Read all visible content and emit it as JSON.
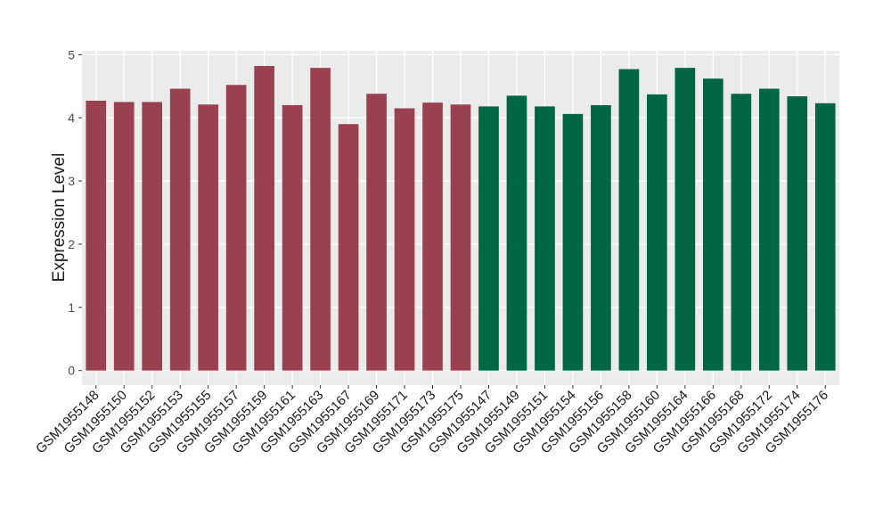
{
  "chart_data": {
    "type": "bar",
    "y_label": "Expression Level",
    "categories": [
      "GSM1955148",
      "GSM1955150",
      "GSM1955152",
      "GSM1955153",
      "GSM1955155",
      "GSM1955157",
      "GSM1955159",
      "GSM1955161",
      "GSM1955163",
      "GSM1955167",
      "GSM1955169",
      "GSM1955171",
      "GSM1955173",
      "GSM1955175",
      "GSM1955147",
      "GSM1955149",
      "GSM1955151",
      "GSM1955154",
      "GSM1955156",
      "GSM1955158",
      "GSM1955160",
      "GSM1955164",
      "GSM1955166",
      "GSM1955168",
      "GSM1955172",
      "GSM1955174",
      "GSM1955176"
    ],
    "values": [
      4.27,
      4.25,
      4.25,
      4.46,
      4.21,
      4.52,
      4.82,
      4.2,
      4.79,
      3.9,
      4.38,
      4.15,
      4.24,
      4.21,
      4.18,
      4.35,
      4.18,
      4.06,
      4.2,
      4.77,
      4.37,
      4.79,
      4.62,
      4.38,
      4.46,
      4.34,
      4.23
    ],
    "colors": [
      "#9a4150",
      "#9a4150",
      "#9a4150",
      "#9a4150",
      "#9a4150",
      "#9a4150",
      "#9a4150",
      "#9a4150",
      "#9a4150",
      "#9a4150",
      "#9a4150",
      "#9a4150",
      "#9a4150",
      "#9a4150",
      "#006644",
      "#006644",
      "#006644",
      "#006644",
      "#006644",
      "#006644",
      "#006644",
      "#006644",
      "#006644",
      "#006644",
      "#006644",
      "#006644",
      "#006644"
    ],
    "ylim": [
      -0.23,
      5.06
    ],
    "yticks": [
      0,
      1,
      2,
      3,
      4,
      5
    ],
    "grid": true
  }
}
